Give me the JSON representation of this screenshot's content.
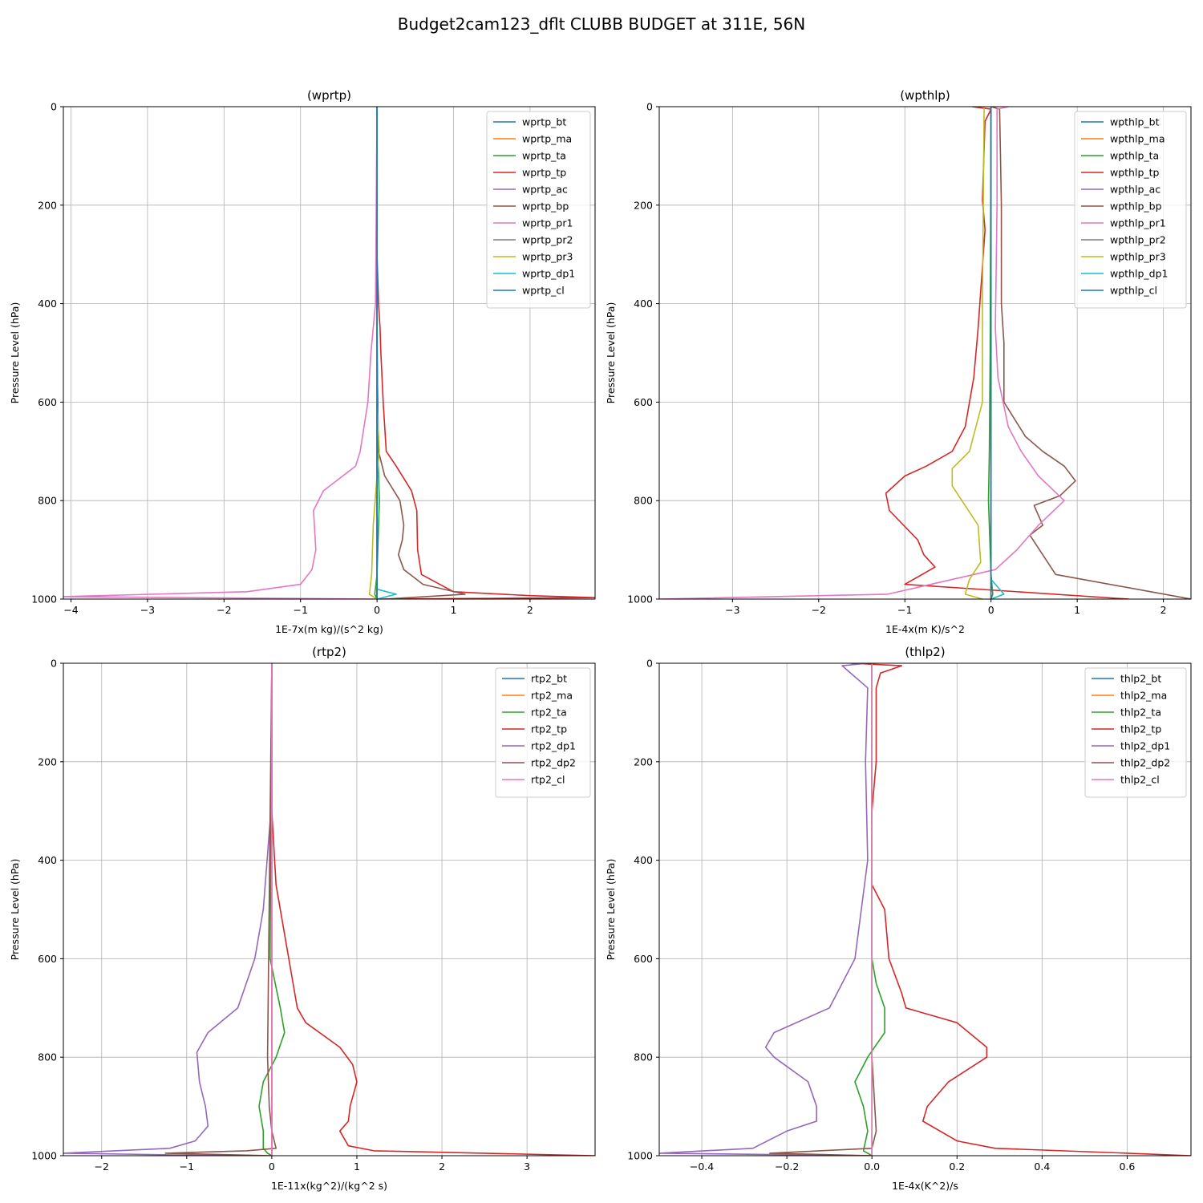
{
  "figure_title": "Budget2cam123_dflt CLUBB BUDGET at 311E, 56N",
  "colors": {
    "c0": "#1f77b4",
    "c1": "#ff7f0e",
    "c2": "#2ca02c",
    "c3": "#d62728",
    "c4": "#9467bd",
    "c5": "#8c564b",
    "c6": "#e377c2",
    "c7": "#7f7f7f",
    "c8": "#bcbd22",
    "c9": "#17becf"
  },
  "chart_data": [
    {
      "type": "line",
      "title": "(wprtp)",
      "xlabel": "1E-7x(m kg)/(s^2 kg)",
      "ylabel": "Pressure Level (hPa)",
      "xlim": [
        -4.1,
        2.85
      ],
      "ylim": [
        1000,
        0
      ],
      "xticks": [
        -4,
        -3,
        -2,
        -1,
        0,
        1,
        2
      ],
      "xtick_labels": [
        "−4",
        "−3",
        "−2",
        "−1",
        "0",
        "1",
        "2"
      ],
      "yticks": [
        0,
        200,
        400,
        600,
        800,
        1000
      ],
      "ytick_labels": [
        "0",
        "200",
        "400",
        "600",
        "800",
        "1000"
      ],
      "grid": true,
      "legend": "upper right",
      "series": [
        {
          "name": "wprtp_bt",
          "color": "#1f77b4",
          "y": [
            0,
            1000
          ],
          "x": [
            0,
            0
          ]
        },
        {
          "name": "wprtp_ma",
          "color": "#ff7f0e",
          "y": [
            0,
            1000
          ],
          "x": [
            0,
            0
          ]
        },
        {
          "name": "wprtp_ta",
          "color": "#2ca02c",
          "y": [
            0,
            400,
            700,
            800,
            950,
            990,
            1000
          ],
          "x": [
            0,
            0,
            0.01,
            0.03,
            0.0,
            -0.03,
            0
          ]
        },
        {
          "name": "wprtp_tp",
          "color": "#d62728",
          "y": [
            0,
            300,
            400,
            450,
            500,
            600,
            700,
            730,
            780,
            820,
            900,
            950,
            985,
            993,
            997,
            1000
          ],
          "x": [
            0,
            0.0,
            0.02,
            0.04,
            0.05,
            0.08,
            0.12,
            0.25,
            0.45,
            0.52,
            0.53,
            0.58,
            1.0,
            2.0,
            2.85,
            0
          ]
        },
        {
          "name": "wprtp_ac",
          "color": "#9467bd",
          "y": [
            0,
            1000
          ],
          "x": [
            0,
            0
          ]
        },
        {
          "name": "wprtp_bp",
          "color": "#8c564b",
          "y": [
            0,
            500,
            700,
            750,
            800,
            850,
            880,
            910,
            940,
            970,
            990,
            1000
          ],
          "x": [
            0,
            0.0,
            0.02,
            0.1,
            0.3,
            0.35,
            0.33,
            0.28,
            0.35,
            0.6,
            1.15,
            0.1
          ]
        },
        {
          "name": "wprtp_pr1",
          "color": "#e377c2",
          "y": [
            0,
            400,
            500,
            600,
            700,
            730,
            780,
            820,
            900,
            940,
            970,
            985,
            995,
            1000
          ],
          "x": [
            0,
            -0.02,
            -0.08,
            -0.12,
            -0.22,
            -0.28,
            -0.7,
            -0.83,
            -0.8,
            -0.85,
            -1.0,
            -1.7,
            -4.1,
            0
          ]
        },
        {
          "name": "wprtp_pr2",
          "color": "#7f7f7f",
          "y": [
            0,
            1000
          ],
          "x": [
            0,
            0
          ]
        },
        {
          "name": "wprtp_pr3",
          "color": "#bcbd22",
          "y": [
            0,
            600,
            700,
            750,
            850,
            950,
            990,
            1000
          ],
          "x": [
            0,
            0.0,
            0.03,
            0.0,
            -0.05,
            -0.07,
            -0.1,
            0
          ]
        },
        {
          "name": "wprtp_dp1",
          "color": "#17becf",
          "y": [
            0,
            900,
            980,
            990,
            1000
          ],
          "x": [
            0,
            0.0,
            0.0,
            0.25,
            0
          ]
        },
        {
          "name": "wprtp_cl",
          "color": "#1f77b4",
          "y": [
            0,
            1000
          ],
          "x": [
            0,
            0
          ]
        }
      ]
    },
    {
      "type": "line",
      "title": "(wpthlp)",
      "xlabel": "1E-4x(m K)/s^2",
      "ylabel": "Pressure Level (hPa)",
      "xlim": [
        -3.85,
        2.32
      ],
      "ylim": [
        1000,
        0
      ],
      "xticks": [
        -3,
        -2,
        -1,
        0,
        1,
        2
      ],
      "xtick_labels": [
        "−3",
        "−2",
        "−1",
        "0",
        "1",
        "2"
      ],
      "yticks": [
        0,
        200,
        400,
        600,
        800,
        1000
      ],
      "ytick_labels": [
        "0",
        "200",
        "400",
        "600",
        "800",
        "1000"
      ],
      "grid": true,
      "legend": "upper right",
      "series": [
        {
          "name": "wpthlp_bt",
          "color": "#1f77b4",
          "y": [
            0,
            1000
          ],
          "x": [
            0,
            0
          ]
        },
        {
          "name": "wpthlp_ma",
          "color": "#ff7f0e",
          "y": [
            0,
            1000
          ],
          "x": [
            0,
            0
          ]
        },
        {
          "name": "wpthlp_ta",
          "color": "#2ca02c",
          "y": [
            0,
            500,
            700,
            800,
            950,
            990,
            1000
          ],
          "x": [
            0,
            -0.01,
            -0.02,
            -0.03,
            0.0,
            0.02,
            0
          ]
        },
        {
          "name": "wpthlp_tp",
          "color": "#d62728",
          "y": [
            0,
            5,
            30,
            190,
            250,
            450,
            550,
            650,
            700,
            730,
            750,
            785,
            820,
            880,
            910,
            935,
            970,
            1000
          ],
          "x": [
            -0.22,
            0.0,
            -0.07,
            -0.1,
            -0.07,
            -0.15,
            -0.2,
            -0.3,
            -0.45,
            -0.75,
            -1.0,
            -1.22,
            -1.18,
            -0.85,
            -0.78,
            -0.65,
            -1.0,
            1.6
          ]
        },
        {
          "name": "wpthlp_ac",
          "color": "#9467bd",
          "y": [
            0,
            1000
          ],
          "x": [
            0,
            0
          ]
        },
        {
          "name": "wpthlp_bp",
          "color": "#8c564b",
          "y": [
            0,
            5,
            200,
            400,
            480,
            600,
            670,
            700,
            730,
            760,
            790,
            810,
            850,
            870,
            950,
            1000
          ],
          "x": [
            0,
            0.1,
            0.12,
            0.12,
            0.15,
            0.15,
            0.4,
            0.6,
            0.85,
            0.98,
            0.8,
            0.5,
            0.6,
            0.45,
            0.75,
            2.32
          ]
        },
        {
          "name": "wpthlp_pr1",
          "color": "#e377c2",
          "y": [
            0,
            5,
            200,
            450,
            550,
            650,
            700,
            750,
            800,
            850,
            900,
            940,
            990,
            1000
          ],
          "x": [
            0.2,
            0.07,
            0.07,
            0.05,
            0.08,
            0.2,
            0.35,
            0.55,
            0.85,
            0.55,
            0.3,
            0.05,
            -1.2,
            -3.85
          ]
        },
        {
          "name": "wpthlp_pr2",
          "color": "#7f7f7f",
          "y": [
            0,
            1000
          ],
          "x": [
            0,
            0
          ]
        },
        {
          "name": "wpthlp_pr3",
          "color": "#bcbd22",
          "y": [
            0,
            400,
            600,
            700,
            735,
            770,
            850,
            925,
            960,
            990,
            1000
          ],
          "x": [
            -0.08,
            -0.1,
            -0.1,
            -0.25,
            -0.45,
            -0.45,
            -0.15,
            -0.12,
            -0.25,
            -0.3,
            -0.1
          ]
        },
        {
          "name": "wpthlp_dp1",
          "color": "#17becf",
          "y": [
            0,
            960,
            990,
            1000
          ],
          "x": [
            0,
            0.0,
            0.15,
            0
          ]
        },
        {
          "name": "wpthlp_cl",
          "color": "#1f77b4",
          "y": [
            0,
            1000
          ],
          "x": [
            0,
            0
          ]
        }
      ]
    },
    {
      "type": "line",
      "title": "(rtp2)",
      "xlabel": "1E-11x(kg^2)/(kg^2 s)",
      "ylabel": "Pressure Level (hPa)",
      "xlim": [
        -2.45,
        3.8
      ],
      "ylim": [
        1000,
        0
      ],
      "xticks": [
        -2,
        -1,
        0,
        1,
        2,
        3
      ],
      "xtick_labels": [
        "−2",
        "−1",
        "0",
        "1",
        "2",
        "3"
      ],
      "yticks": [
        0,
        200,
        400,
        600,
        800,
        1000
      ],
      "ytick_labels": [
        "0",
        "200",
        "400",
        "600",
        "800",
        "1000"
      ],
      "grid": true,
      "legend": "upper right",
      "series": [
        {
          "name": "rtp2_bt",
          "color": "#1f77b4",
          "y": [
            0,
            1000
          ],
          "x": [
            0,
            0
          ]
        },
        {
          "name": "rtp2_ma",
          "color": "#ff7f0e",
          "y": [
            0,
            1000
          ],
          "x": [
            0,
            0
          ]
        },
        {
          "name": "rtp2_ta",
          "color": "#2ca02c",
          "y": [
            0,
            600,
            700,
            750,
            800,
            850,
            900,
            950,
            985,
            995,
            1000
          ],
          "x": [
            0,
            -0.02,
            0.1,
            0.15,
            0.05,
            -0.1,
            -0.15,
            -0.1,
            -0.1,
            -0.05,
            0
          ]
        },
        {
          "name": "rtp2_tp",
          "color": "#d62728",
          "y": [
            0,
            300,
            450,
            550,
            650,
            700,
            730,
            780,
            815,
            850,
            900,
            930,
            950,
            980,
            990,
            1000
          ],
          "x": [
            0,
            0,
            0.05,
            0.15,
            0.25,
            0.3,
            0.4,
            0.8,
            0.95,
            1.0,
            0.92,
            0.9,
            0.8,
            0.9,
            1.2,
            3.8
          ]
        },
        {
          "name": "rtp2_dp1",
          "color": "#9467bd",
          "y": [
            0,
            300,
            500,
            600,
            700,
            750,
            790,
            850,
            900,
            940,
            970,
            985,
            995,
            1000
          ],
          "x": [
            0,
            -0.01,
            -0.1,
            -0.2,
            -0.4,
            -0.75,
            -0.88,
            -0.85,
            -0.78,
            -0.75,
            -0.9,
            -1.2,
            -2.45,
            -0.5
          ]
        },
        {
          "name": "rtp2_dp2",
          "color": "#8c564b",
          "y": [
            0,
            800,
            900,
            950,
            985,
            990,
            995,
            1000
          ],
          "x": [
            0,
            -0.05,
            -0.03,
            0.0,
            0.05,
            -0.3,
            -1.25,
            0
          ]
        },
        {
          "name": "rtp2_cl",
          "color": "#e377c2",
          "y": [
            0,
            1000
          ],
          "x": [
            0,
            0
          ]
        }
      ]
    },
    {
      "type": "line",
      "title": "(thlp2)",
      "xlabel": "1E-4x(K^2)/s",
      "ylabel": "Pressure Level (hPa)",
      "xlim": [
        -0.5,
        0.75
      ],
      "ylim": [
        1000,
        0
      ],
      "xticks": [
        -0.4,
        -0.2,
        0.0,
        0.2,
        0.4,
        0.6
      ],
      "xtick_labels": [
        "−0.4",
        "−0.2",
        "0.0",
        "0.2",
        "0.4",
        "0.6"
      ],
      "yticks": [
        0,
        200,
        400,
        600,
        800,
        1000
      ],
      "ytick_labels": [
        "0",
        "200",
        "400",
        "600",
        "800",
        "1000"
      ],
      "grid": true,
      "legend": "upper right",
      "series": [
        {
          "name": "thlp2_bt",
          "color": "#1f77b4",
          "y": [
            0,
            1000
          ],
          "x": [
            0,
            0
          ]
        },
        {
          "name": "thlp2_ma",
          "color": "#ff7f0e",
          "y": [
            0,
            1000
          ],
          "x": [
            0,
            0
          ]
        },
        {
          "name": "thlp2_ta",
          "color": "#2ca02c",
          "y": [
            0,
            600,
            650,
            700,
            750,
            800,
            850,
            900,
            950,
            990,
            1000
          ],
          "x": [
            0,
            0.0,
            0.01,
            0.03,
            0.03,
            -0.01,
            -0.04,
            -0.02,
            -0.01,
            -0.02,
            0
          ]
        },
        {
          "name": "thlp2_tp",
          "color": "#d62728",
          "y": [
            0,
            5,
            20,
            50,
            200,
            300,
            450,
            500,
            600,
            670,
            700,
            730,
            780,
            800,
            850,
            900,
            930,
            970,
            985,
            995,
            1000
          ],
          "x": [
            -0.05,
            0.07,
            0.02,
            0.01,
            0.01,
            0.0,
            0.0,
            0.03,
            0.04,
            0.07,
            0.08,
            0.2,
            0.27,
            0.27,
            0.18,
            0.13,
            0.12,
            0.2,
            0.29,
            0.6,
            0.75
          ]
        },
        {
          "name": "thlp2_dp1",
          "color": "#9467bd",
          "y": [
            0,
            5,
            50,
            200,
            400,
            600,
            700,
            750,
            780,
            800,
            850,
            900,
            930,
            950,
            985,
            995,
            1000
          ],
          "x": [
            -0.01,
            -0.07,
            -0.01,
            -0.015,
            -0.01,
            -0.04,
            -0.1,
            -0.23,
            -0.25,
            -0.23,
            -0.15,
            -0.13,
            -0.13,
            -0.2,
            -0.28,
            -0.5,
            0
          ]
        },
        {
          "name": "thlp2_dp2",
          "color": "#8c564b",
          "y": [
            0,
            800,
            950,
            985,
            995,
            1000
          ],
          "x": [
            0,
            0.0,
            0.01,
            0.0,
            -0.24,
            0
          ]
        },
        {
          "name": "thlp2_cl",
          "color": "#e377c2",
          "y": [
            0,
            1000
          ],
          "x": [
            0,
            0
          ]
        }
      ]
    }
  ]
}
